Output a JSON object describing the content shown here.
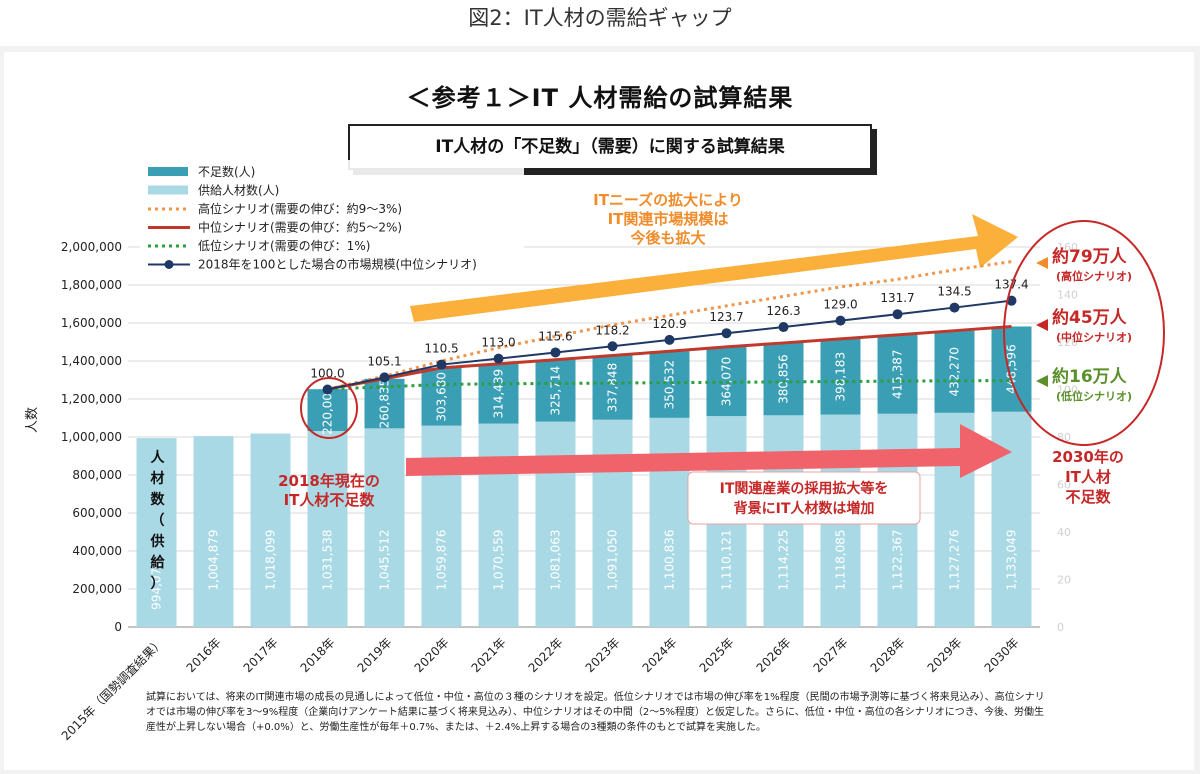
{
  "page": {
    "heading": "図2：IT人材の需給ギャップ",
    "title": "＜参考１＞IT 人材需給の試算結果",
    "subtitle": "IT人材の「不足数」（需要）に関する試算結果",
    "footnote": "試算においては、将来のIT関連市場の成長の見通しによって低位・中位・高位の３種のシナリオを設定。低位シナリオでは市場の伸び率を1%程度（民間の市場予測等に基づく将来見込み）、高位シナリオでは市場の伸び率を3～9%程度（企業向けアンケート結果に基づく将来見込み）、中位シナリオはその中間（2～5%程度）と仮定した。さらに、低位・中位・高位の各シナリオにつき、今後、労働生産性が上昇しない場合（+0.0%）と、労働生産性が毎年＋0.7%、または、＋2.4%上昇する場合の3種類の条件のもとで試算を実施した。"
  },
  "colors": {
    "shortage": "#3a9fb5",
    "supply": "#a9d9e4",
    "high": "#f0954a",
    "mid": "#c0392b",
    "low": "#2e9e3e",
    "market": "#1f3864",
    "orange_arrow": "#fbb03b",
    "pink_arrow": "#f0636b",
    "annot_red": "#c62828",
    "annot_orange": "#f08c2a",
    "annot_green": "#5b8f2a"
  },
  "chart_data": {
    "type": "bar",
    "ylabel": "人数",
    "ylim": [
      0,
      2000000
    ],
    "yticks": [
      "0",
      "200,000",
      "400,000",
      "600,000",
      "800,000",
      "1,000,000",
      "1,200,000",
      "1,400,000",
      "1,600,000",
      "1,800,000",
      "2,000,000"
    ],
    "categories": [
      "2015年（国勢調査結果）",
      "2016年",
      "2017年",
      "2018年",
      "2019年",
      "2020年",
      "2021年",
      "2022年",
      "2023年",
      "2024年",
      "2025年",
      "2026年",
      "2027年",
      "2028年",
      "2029年",
      "2030年"
    ],
    "supply_label_vertical": "人材数（供給）",
    "series": [
      {
        "name": "供給人材数(人)",
        "kind": "bar",
        "values": [
          994070,
          1004879,
          1018099,
          1031538,
          1045512,
          1059876,
          1070559,
          1081063,
          1091050,
          1100836,
          1110121,
          1114225,
          1118085,
          1122367,
          1127276,
          1133049
        ],
        "labels": [
          "994,070",
          "1,004,879",
          "1,018,099",
          "1,031,538",
          "1,045,512",
          "1,059,876",
          "1,070,559",
          "1,081,063",
          "1,091,050",
          "1,100,836",
          "1,110,121",
          "1,114,225",
          "1,118,085",
          "1,122,367",
          "1,127,276",
          "1,133,049"
        ]
      },
      {
        "name": "不足数(人)",
        "kind": "bar-stacked",
        "values": [
          null,
          null,
          null,
          220000,
          260835,
          303680,
          314439,
          325714,
          337848,
          350532,
          364070,
          380856,
          398183,
          415387,
          432270,
          448596
        ],
        "labels": [
          "",
          "",
          "",
          "220,000",
          "260,835",
          "303,680",
          "314,439",
          "325,714",
          "337,848",
          "350,532",
          "364,070",
          "380,856",
          "398,183",
          "415,387",
          "432,270",
          "448,596"
        ]
      },
      {
        "name": "高位シナリオ(需要の伸び：約9～3%)",
        "kind": "line-dotted",
        "values": [
          null,
          null,
          null,
          1251538,
          1320000,
          1400000,
          1470000,
          1530000,
          1590000,
          1640000,
          1690000,
          1740000,
          1790000,
          1830000,
          1880000,
          1923049
        ]
      },
      {
        "name": "中位シナリオ(需要の伸び：約5～2%)",
        "kind": "line",
        "values": [
          null,
          null,
          null,
          1251538,
          1306347,
          1363556,
          1384998,
          1406777,
          1428898,
          1451368,
          1474191,
          1495081,
          1516268,
          1537754,
          1559546,
          1581645
        ]
      },
      {
        "name": "低位シナリオ(需要の伸び：1%)",
        "kind": "line-dotted",
        "values": [
          null,
          null,
          null,
          1251538,
          1264053,
          1276694,
          1280000,
          1282000,
          1284000,
          1286000,
          1288000,
          1290000,
          1292000,
          1294000,
          1296000,
          1297049
        ]
      },
      {
        "name": "2018年を100とした場合の市場規模(中位シナリオ)",
        "kind": "line-marker",
        "index_values": [
          null,
          null,
          null,
          100.0,
          105.1,
          110.5,
          113.0,
          115.6,
          118.2,
          120.9,
          123.7,
          126.3,
          129.0,
          131.7,
          134.5,
          137.4
        ],
        "labels": [
          "",
          "",
          "",
          "100.0",
          "105.1",
          "110.5",
          "113.0",
          "115.6",
          "118.2",
          "120.9",
          "123.7",
          "126.3",
          "129.0",
          "131.7",
          "134.5",
          "137.4"
        ],
        "secondary_ylim": [
          0,
          160
        ],
        "secondary_yticks": [
          "0",
          "20",
          "40",
          "60",
          "80",
          "100",
          "120",
          "140",
          "160"
        ]
      }
    ],
    "legend": [
      "不足数(人)",
      "供給人材数(人)",
      "高位シナリオ(需要の伸び：約9～3%)",
      "中位シナリオ(需要の伸び：約5～2%)",
      "低位シナリオ(需要の伸び：1%)",
      "2018年を100とした場合の市場規模(中位シナリオ)"
    ],
    "legend_position": "top-left",
    "annotations": {
      "orange_arrow_text": [
        "ITニーズの拡大により",
        "IT関連市場規模は",
        "今後も拡大"
      ],
      "pink_arrow_text": [
        "IT関連産業の採用拡大等を",
        "背景にIT人材数は増加"
      ],
      "shortage_2018": [
        "2018年現在の",
        "IT人材不足数"
      ],
      "high_value": "約79万人",
      "high_scenario": "(高位シナリオ)",
      "mid_value": "約45万人",
      "mid_scenario": "(中位シナリオ)",
      "low_value": "約16万人",
      "low_scenario": "(低位シナリオ)",
      "shortage_2030": [
        "2030年の",
        "IT人材",
        "不足数"
      ]
    }
  }
}
